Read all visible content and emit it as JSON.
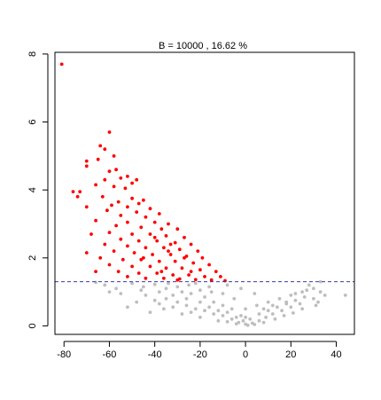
{
  "chart_data": {
    "type": "scatter",
    "title": "B =  10000 ,  16.62 %",
    "xlabel": "",
    "ylabel": "",
    "xlim": [
      -84,
      48
    ],
    "ylim": [
      -0.25,
      8.05
    ],
    "x_ticks": [
      -80,
      -60,
      -40,
      -20,
      0,
      20,
      40
    ],
    "y_ticks": [
      0,
      2,
      4,
      6,
      8
    ],
    "threshold": {
      "y": 1.3,
      "style": "dashed",
      "color": "#3a3aa8"
    },
    "colors": {
      "significant": "#ff0000",
      "nonsignificant": "#bebebe"
    },
    "grid": false,
    "legend": "none",
    "series": [
      {
        "role": "significant",
        "points": [
          [
            -81,
            7.7
          ],
          [
            -60,
            5.7
          ],
          [
            -64,
            5.3
          ],
          [
            -62,
            5.2
          ],
          [
            -58,
            5.0
          ],
          [
            -65,
            4.9
          ],
          [
            -70,
            4.85
          ],
          [
            -70,
            4.7
          ],
          [
            -57,
            4.6
          ],
          [
            -60,
            4.55
          ],
          [
            -52,
            4.4
          ],
          [
            -55,
            4.35
          ],
          [
            -62,
            4.3
          ],
          [
            -48,
            4.3
          ],
          [
            -50,
            4.2
          ],
          [
            -66,
            4.15
          ],
          [
            -58,
            4.1
          ],
          [
            -53,
            4.05
          ],
          [
            -76,
            3.95
          ],
          [
            -73,
            3.95
          ],
          [
            -74,
            3.8
          ],
          [
            -63,
            3.8
          ],
          [
            -50,
            3.75
          ],
          [
            -45,
            3.7
          ],
          [
            -56,
            3.65
          ],
          [
            -47,
            3.6
          ],
          [
            -70,
            3.5
          ],
          [
            -59,
            3.55
          ],
          [
            -52,
            3.5
          ],
          [
            -42,
            3.45
          ],
          [
            -61,
            3.4
          ],
          [
            -48,
            3.35
          ],
          [
            -38,
            3.3
          ],
          [
            -55,
            3.25
          ],
          [
            -44,
            3.2
          ],
          [
            -66,
            3.1
          ],
          [
            -52,
            3.05
          ],
          [
            -40,
            3.05
          ],
          [
            -34,
            3.0
          ],
          [
            -57,
            2.95
          ],
          [
            -46,
            2.9
          ],
          [
            -37,
            2.85
          ],
          [
            -30,
            2.85
          ],
          [
            -68,
            2.7
          ],
          [
            -60,
            2.75
          ],
          [
            -50,
            2.7
          ],
          [
            -42,
            2.7
          ],
          [
            -35,
            2.65
          ],
          [
            -27,
            2.6
          ],
          [
            -55,
            2.55
          ],
          [
            -47,
            2.5
          ],
          [
            -39,
            2.5
          ],
          [
            -31,
            2.45
          ],
          [
            -24,
            2.4
          ],
          [
            -62,
            2.4
          ],
          [
            -52,
            2.35
          ],
          [
            -44,
            2.3
          ],
          [
            -36,
            2.3
          ],
          [
            -29,
            2.25
          ],
          [
            -21,
            2.2
          ],
          [
            -58,
            2.2
          ],
          [
            -49,
            2.15
          ],
          [
            -41,
            2.1
          ],
          [
            -33,
            2.1
          ],
          [
            -26,
            2.05
          ],
          [
            -19,
            2.0
          ],
          [
            -70,
            2.15
          ],
          [
            -64,
            2.0
          ],
          [
            -54,
            1.95
          ],
          [
            -46,
            1.95
          ],
          [
            -38,
            1.9
          ],
          [
            -31,
            1.9
          ],
          [
            -23,
            1.85
          ],
          [
            -16,
            1.8
          ],
          [
            -60,
            1.8
          ],
          [
            -50,
            1.75
          ],
          [
            -42,
            1.75
          ],
          [
            -35,
            1.7
          ],
          [
            -28,
            1.7
          ],
          [
            -20,
            1.65
          ],
          [
            -13,
            1.6
          ],
          [
            -66,
            1.6
          ],
          [
            -56,
            1.6
          ],
          [
            -47,
            1.55
          ],
          [
            -39,
            1.55
          ],
          [
            -32,
            1.5
          ],
          [
            -25,
            1.5
          ],
          [
            -18,
            1.45
          ],
          [
            -11,
            1.45
          ],
          [
            -52,
            1.45
          ],
          [
            -44,
            1.4
          ],
          [
            -36,
            1.4
          ],
          [
            -29,
            1.38
          ],
          [
            -22,
            1.36
          ],
          [
            -15,
            1.35
          ],
          [
            -9,
            1.33
          ],
          [
            -40,
            2.6
          ],
          [
            -33,
            2.4
          ],
          [
            -45,
            2.0
          ],
          [
            -27,
            2.0
          ],
          [
            -37,
            1.6
          ],
          [
            -24,
            1.6
          ],
          [
            -30,
            1.35
          ],
          [
            -34,
            2.2
          ]
        ]
      },
      {
        "role": "nonsignificant",
        "points": [
          [
            -62,
            1.2
          ],
          [
            -57,
            1.1
          ],
          [
            -50,
            1.25
          ],
          [
            -45,
            1.15
          ],
          [
            -40,
            1.22
          ],
          [
            -35,
            1.1
          ],
          [
            -30,
            1.15
          ],
          [
            -25,
            1.2
          ],
          [
            -20,
            1.05
          ],
          [
            -15,
            1.0
          ],
          [
            -10,
            0.95
          ],
          [
            -5,
            0.8
          ],
          [
            0,
            0.5
          ],
          [
            5,
            0.6
          ],
          [
            10,
            0.7
          ],
          [
            15,
            0.8
          ],
          [
            20,
            0.9
          ],
          [
            25,
            1.0
          ],
          [
            28,
            1.2
          ],
          [
            30,
            1.1
          ],
          [
            33,
            1.0
          ],
          [
            -44,
            0.9
          ],
          [
            -38,
            1.0
          ],
          [
            -32,
            0.9
          ],
          [
            -28,
            1.0
          ],
          [
            -24,
            0.95
          ],
          [
            -18,
            0.85
          ],
          [
            -14,
            0.7
          ],
          [
            -10,
            0.6
          ],
          [
            -6,
            0.5
          ],
          [
            -2,
            0.3
          ],
          [
            2,
            0.2
          ],
          [
            6,
            0.35
          ],
          [
            10,
            0.45
          ],
          [
            14,
            0.55
          ],
          [
            18,
            0.65
          ],
          [
            22,
            0.75
          ],
          [
            26,
            0.85
          ],
          [
            -35,
            0.8
          ],
          [
            -30,
            0.7
          ],
          [
            -26,
            0.6
          ],
          [
            -22,
            0.5
          ],
          [
            -18,
            0.45
          ],
          [
            -14,
            0.35
          ],
          [
            -10,
            0.3
          ],
          [
            -6,
            0.2
          ],
          [
            -3,
            0.1
          ],
          [
            0,
            0.05
          ],
          [
            3,
            0.08
          ],
          [
            6,
            0.15
          ],
          [
            9,
            0.25
          ],
          [
            12,
            0.35
          ],
          [
            16,
            0.45
          ],
          [
            20,
            0.55
          ],
          [
            24,
            0.65
          ],
          [
            30,
            0.8
          ],
          [
            35,
            0.9
          ],
          [
            44,
            0.9
          ],
          [
            -48,
            0.7
          ],
          [
            -52,
            0.55
          ],
          [
            -42,
            0.4
          ],
          [
            -36,
            0.5
          ],
          [
            -28,
            0.35
          ],
          [
            -20,
            0.25
          ],
          [
            -12,
            0.15
          ],
          [
            -8,
            0.12
          ],
          [
            -4,
            0.06
          ],
          [
            1,
            0.02
          ],
          [
            4,
            0.04
          ],
          [
            8,
            0.1
          ],
          [
            13,
            0.2
          ],
          [
            17,
            0.3
          ],
          [
            21,
            0.38
          ],
          [
            25,
            0.5
          ],
          [
            31,
            0.6
          ],
          [
            -55,
            0.95
          ],
          [
            -46,
            1.05
          ],
          [
            -38,
            0.65
          ],
          [
            -32,
            0.55
          ],
          [
            -24,
            0.4
          ],
          [
            -16,
            0.55
          ],
          [
            -12,
            0.45
          ],
          [
            -8,
            0.4
          ],
          [
            -4,
            0.25
          ],
          [
            -1,
            0.15
          ],
          [
            8,
            0.5
          ],
          [
            12,
            0.6
          ],
          [
            18,
            0.7
          ],
          [
            22,
            0.95
          ],
          [
            27,
            1.05
          ],
          [
            32,
            0.7
          ],
          [
            -60,
            1.0
          ],
          [
            -40,
            0.75
          ],
          [
            -26,
            0.8
          ],
          [
            -20,
            0.7
          ],
          [
            0,
            0.25
          ],
          [
            -34,
            1.25
          ],
          [
            -22,
            1.25
          ],
          [
            -16,
            1.15
          ],
          [
            -8,
            1.2
          ],
          [
            -2,
            1.1
          ],
          [
            4,
            0.95
          ],
          [
            -66,
            1.28
          ],
          [
            33,
            1.3
          ]
        ]
      }
    ]
  }
}
